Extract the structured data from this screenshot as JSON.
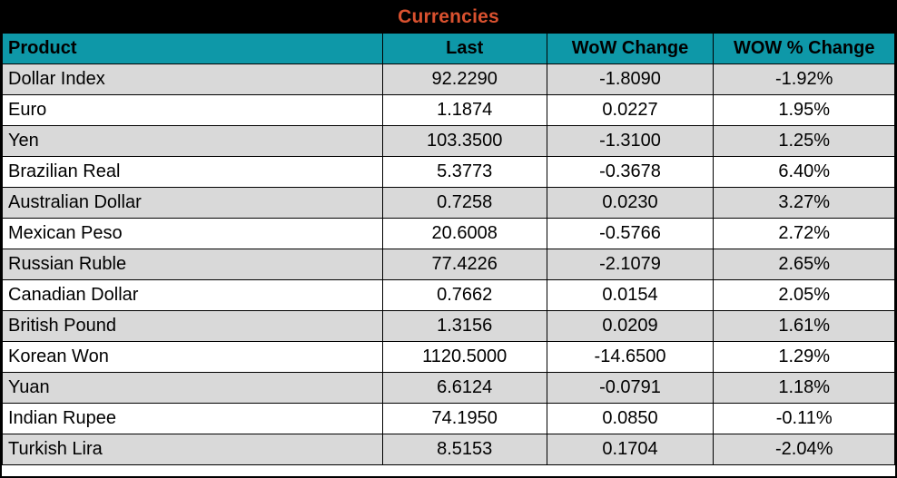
{
  "title": "Currencies",
  "colors": {
    "title_bg": "#000000",
    "title_text": "#d9512f",
    "header_bg": "#0e98a8",
    "row_alt_bg": "#d9d9d9",
    "row_bg": "#ffffff",
    "border": "#000000",
    "text": "#000000"
  },
  "columns": [
    "Product",
    "Last",
    "WoW Change",
    "WOW % Change"
  ],
  "rows": [
    [
      "Dollar Index",
      "92.2290",
      "-1.8090",
      "-1.92%"
    ],
    [
      "Euro",
      "1.1874",
      "0.0227",
      "1.95%"
    ],
    [
      "Yen",
      "103.3500",
      "-1.3100",
      "1.25%"
    ],
    [
      "Brazilian Real",
      "5.3773",
      "-0.3678",
      "6.40%"
    ],
    [
      "Australian Dollar",
      "0.7258",
      "0.0230",
      "3.27%"
    ],
    [
      "Mexican Peso",
      "20.6008",
      "-0.5766",
      "2.72%"
    ],
    [
      "Russian Ruble",
      "77.4226",
      "-2.1079",
      "2.65%"
    ],
    [
      "Canadian Dollar",
      "0.7662",
      "0.0154",
      "2.05%"
    ],
    [
      "British Pound",
      "1.3156",
      "0.0209",
      "1.61%"
    ],
    [
      "Korean Won",
      "1120.5000",
      "-14.6500",
      "1.29%"
    ],
    [
      "Yuan",
      "6.6124",
      "-0.0791",
      "1.18%"
    ],
    [
      "Indian Rupee",
      "74.1950",
      "0.0850",
      "-0.11%"
    ],
    [
      "Turkish Lira",
      "8.5153",
      "0.1704",
      "-2.04%"
    ]
  ],
  "chart_data": {
    "type": "table",
    "title": "Currencies",
    "columns": [
      "Product",
      "Last",
      "WoW Change",
      "WOW % Change"
    ],
    "rows": [
      {
        "product": "Dollar Index",
        "last": 92.229,
        "wow_change": -1.809,
        "wow_pct_change": "-1.92%"
      },
      {
        "product": "Euro",
        "last": 1.1874,
        "wow_change": 0.0227,
        "wow_pct_change": "1.95%"
      },
      {
        "product": "Yen",
        "last": 103.35,
        "wow_change": -1.31,
        "wow_pct_change": "1.25%"
      },
      {
        "product": "Brazilian Real",
        "last": 5.3773,
        "wow_change": -0.3678,
        "wow_pct_change": "6.40%"
      },
      {
        "product": "Australian Dollar",
        "last": 0.7258,
        "wow_change": 0.023,
        "wow_pct_change": "3.27%"
      },
      {
        "product": "Mexican Peso",
        "last": 20.6008,
        "wow_change": -0.5766,
        "wow_pct_change": "2.72%"
      },
      {
        "product": "Russian Ruble",
        "last": 77.4226,
        "wow_change": -2.1079,
        "wow_pct_change": "2.65%"
      },
      {
        "product": "Canadian Dollar",
        "last": 0.7662,
        "wow_change": 0.0154,
        "wow_pct_change": "2.05%"
      },
      {
        "product": "British Pound",
        "last": 1.3156,
        "wow_change": 0.0209,
        "wow_pct_change": "1.61%"
      },
      {
        "product": "Korean Won",
        "last": 1120.5,
        "wow_change": -14.65,
        "wow_pct_change": "1.29%"
      },
      {
        "product": "Yuan",
        "last": 6.6124,
        "wow_change": -0.0791,
        "wow_pct_change": "1.18%"
      },
      {
        "product": "Indian Rupee",
        "last": 74.195,
        "wow_change": 0.085,
        "wow_pct_change": "-0.11%"
      },
      {
        "product": "Turkish Lira",
        "last": 8.5153,
        "wow_change": 0.1704,
        "wow_pct_change": "-2.04%"
      }
    ]
  }
}
